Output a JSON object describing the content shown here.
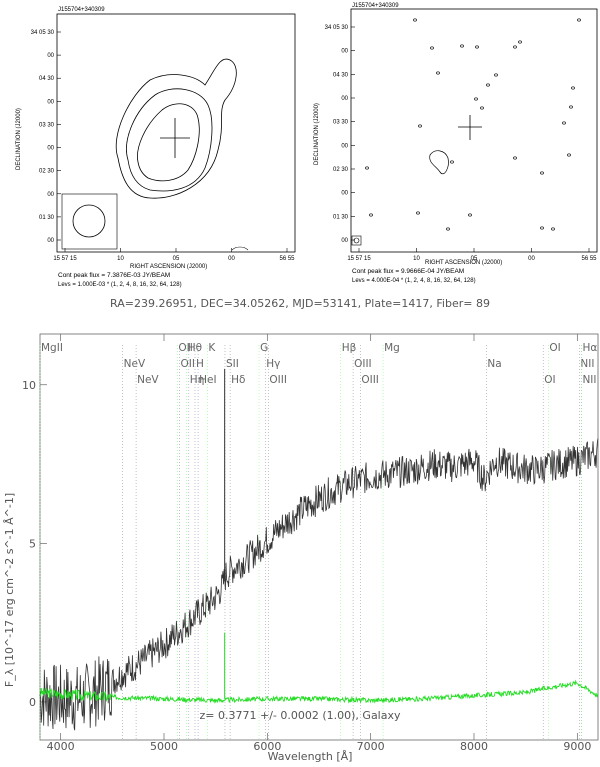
{
  "radio_left": {
    "id_label": "J155704+340309",
    "dec_ticks": [
      "34 05 30",
      "00",
      "04 30",
      "00",
      "03 30",
      "00",
      "02 30",
      "00",
      "01 30",
      "00"
    ],
    "ra_ticks": [
      "15 57 15",
      "10",
      "05",
      "00",
      "56 55"
    ],
    "xlabel": "RIGHT ASCENSION (J2000)",
    "ylabel": "DECLINATION (J2000)",
    "peak": "Cont peak flux =  7.3876E-03 JY/BEAM",
    "levs": "Levs = 1.000E-03 * (1, 2, 4, 8, 16, 32, 64, 128)"
  },
  "radio_right": {
    "id_label": "J155704+340309",
    "dec_ticks": [
      "34 05 30",
      "00",
      "04 30",
      "00",
      "03 30",
      "00",
      "02 30",
      "00",
      "01 30",
      "00"
    ],
    "ra_ticks": [
      "15 57 15",
      "10",
      "05",
      "00",
      "56 55"
    ],
    "xlabel": "RIGHT ASCENSION (J2000)",
    "ylabel": "DECLINATION (J2000)",
    "peak": "Cont peak flux =  9.9666E-04 JY/BEAM",
    "levs": "Levs = 4.000E-04 * (1, 2, 4, 8, 16, 32, 64, 128)"
  },
  "info_line": "RA=239.26951, DEC=34.05262, MJD=53141, Plate=1417, Fiber= 89",
  "redshift_line": "z= 0.3771 +/- 0.0002 (1.00), Galaxy",
  "chart_data": {
    "type": "line",
    "xlabel": "Wavelength [Å]",
    "ylabel": "F_λ [10^-17 erg cm^-2 s^-1 Å^-1]",
    "xlim": [
      3800,
      9200
    ],
    "ylim": [
      -1.2,
      11.6
    ],
    "x_ticks": [
      4000,
      5000,
      6000,
      7000,
      8000,
      9000
    ],
    "y_ticks": [
      0,
      5,
      10
    ],
    "series": [
      {
        "color": "#333333",
        "x": [
          3800,
          4000,
          4200,
          4400,
          4600,
          4800,
          5000,
          5200,
          5400,
          5500,
          5560,
          5600,
          5700,
          5800,
          6000,
          6200,
          6400,
          6600,
          6800,
          7000,
          7200,
          7400,
          7600,
          7800,
          8000,
          8100,
          8200,
          8400,
          8600,
          8800,
          9000,
          9200
        ],
        "y": [
          0.2,
          0.1,
          0.1,
          0.4,
          0.9,
          1.3,
          1.8,
          2.4,
          3.0,
          3.3,
          3.6,
          4.0,
          4.3,
          4.5,
          5.1,
          5.7,
          6.2,
          6.6,
          6.9,
          7.1,
          7.2,
          7.3,
          7.5,
          7.4,
          7.6,
          7.0,
          7.6,
          7.4,
          7.3,
          7.5,
          7.6,
          7.9
        ]
      },
      {
        "color": "#22dd22",
        "x": [
          3800,
          4000,
          4500,
          5000,
          5500,
          6000,
          6500,
          7000,
          7500,
          8000,
          8500,
          8800,
          9000,
          9200
        ],
        "y": [
          0.3,
          0.25,
          0.15,
          0.1,
          0.05,
          0.1,
          0.1,
          0.05,
          0.1,
          0.2,
          0.3,
          0.5,
          0.6,
          0.2
        ]
      }
    ],
    "spike": {
      "x": 5587,
      "y_top": 10.5,
      "green_top": 0.95
    },
    "emission_lines": [
      {
        "label": "MgII",
        "x": 3800
      },
      {
        "label": "NeV",
        "x": 4600
      },
      {
        "label": "NeV",
        "x": 4730
      },
      {
        "label": "OII",
        "x": 5130
      },
      {
        "label": "OII",
        "x": 5150
      },
      {
        "label": "Hη",
        "x": 5240
      },
      {
        "label": "Hθ",
        "x": 5220
      },
      {
        "label": "H",
        "x": 5300
      },
      {
        "label": "HeI",
        "x": 5330
      },
      {
        "label": "K",
        "x": 5420
      },
      {
        "label": "SII",
        "x": 5590
      },
      {
        "label": "Hδ",
        "x": 5640
      },
      {
        "label": "G",
        "x": 5920
      },
      {
        "label": "Hγ",
        "x": 5980
      },
      {
        "label": "OIII",
        "x": 6010
      },
      {
        "label": "Hβ",
        "x": 6710
      },
      {
        "label": "OIII",
        "x": 6830
      },
      {
        "label": "OIII",
        "x": 6900
      },
      {
        "label": "Mg",
        "x": 7120
      },
      {
        "label": "Na",
        "x": 8120
      },
      {
        "label": "OI",
        "x": 8670
      },
      {
        "label": "OI",
        "x": 8720
      },
      {
        "label": "NII",
        "x": 9020
      },
      {
        "label": "NII",
        "x": 9040
      },
      {
        "label": "Hα",
        "x": 9040
      }
    ]
  }
}
